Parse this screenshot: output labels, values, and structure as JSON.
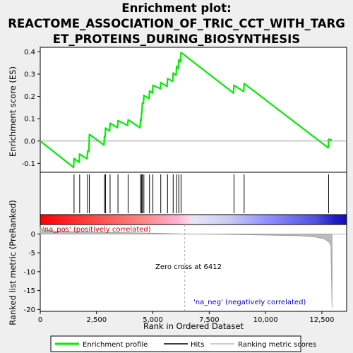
{
  "chart_data": {
    "type": "line",
    "title_line1": "Enrichment plot:",
    "title_line2": "REACTOME_ASSOCIATION_OF_TRIC_CCT_WITH_TARG",
    "title_line3": "ET_PROTEINS_DURING_BIOSYNTHESIS",
    "xlabel": "Rank in Ordered Dataset",
    "ylabel_top": "Enrichment score (ES)",
    "ylabel_bottom": "Ranked list metric (PreRanked)",
    "xlim": [
      0,
      13600
    ],
    "es_ylim": [
      -0.14,
      0.42
    ],
    "metric_ylim": [
      -20.5,
      2.5
    ],
    "x_ticks": [
      0,
      2500,
      5000,
      7500,
      10000,
      12500
    ],
    "x_tick_labels": [
      "0",
      "2,500",
      "5,000",
      "7,500",
      "10,000",
      "12,500"
    ],
    "es_ticks": [
      -0.1,
      0.0,
      0.1,
      0.2,
      0.3,
      0.4
    ],
    "es_tick_labels": [
      "-0.1",
      "0.0",
      "0.1",
      "0.2",
      "0.3",
      "0.4"
    ],
    "metric_ticks": [
      0,
      -5,
      -10,
      -15,
      -20
    ],
    "metric_tick_labels": [
      "0",
      "-5",
      "-10",
      "-15",
      "-20"
    ],
    "hits": [
      1500,
      1750,
      2100,
      2180,
      2850,
      2900,
      3100,
      3450,
      3900,
      4450,
      4500,
      4530,
      4600,
      4850,
      5000,
      5350,
      5650,
      5900,
      6050,
      6150,
      6250,
      8600,
      9050,
      12800
    ],
    "es_curve": [
      [
        0,
        0.0
      ],
      [
        1480,
        -0.118
      ],
      [
        1500,
        -0.078
      ],
      [
        1730,
        -0.095
      ],
      [
        1750,
        -0.058
      ],
      [
        2080,
        -0.08
      ],
      [
        2100,
        -0.045
      ],
      [
        2160,
        -0.048
      ],
      [
        2180,
        0.03
      ],
      [
        2830,
        -0.018
      ],
      [
        2850,
        0.02
      ],
      [
        2880,
        0.018
      ],
      [
        2900,
        0.058
      ],
      [
        3080,
        0.045
      ],
      [
        3100,
        0.08
      ],
      [
        3430,
        0.06
      ],
      [
        3450,
        0.092
      ],
      [
        3880,
        0.07
      ],
      [
        3900,
        0.095
      ],
      [
        4430,
        0.06
      ],
      [
        4450,
        0.095
      ],
      [
        4480,
        0.092
      ],
      [
        4500,
        0.13
      ],
      [
        4510,
        0.128
      ],
      [
        4530,
        0.17
      ],
      [
        4580,
        0.168
      ],
      [
        4600,
        0.205
      ],
      [
        4830,
        0.19
      ],
      [
        4850,
        0.225
      ],
      [
        4980,
        0.215
      ],
      [
        5000,
        0.25
      ],
      [
        5330,
        0.235
      ],
      [
        5350,
        0.262
      ],
      [
        5630,
        0.245
      ],
      [
        5650,
        0.28
      ],
      [
        5880,
        0.268
      ],
      [
        5900,
        0.305
      ],
      [
        6030,
        0.295
      ],
      [
        6050,
        0.335
      ],
      [
        6130,
        0.325
      ],
      [
        6150,
        0.365
      ],
      [
        6230,
        0.355
      ],
      [
        6250,
        0.397
      ],
      [
        8580,
        0.215
      ],
      [
        8600,
        0.25
      ],
      [
        9030,
        0.222
      ],
      [
        9050,
        0.258
      ],
      [
        12780,
        -0.03
      ],
      [
        12800,
        0.008
      ],
      [
        12950,
        0.005
      ]
    ],
    "zero_cross": 6412,
    "zero_cross_label": "Zero cross at 6412",
    "na_pos_label": "'na_pos' (positively correlated)",
    "na_neg_label": "'na_neg' (negatively correlated)",
    "metric_curve": [
      [
        0,
        1.8
      ],
      [
        200,
        1.0
      ],
      [
        600,
        0.8
      ],
      [
        1500,
        0.6
      ],
      [
        3000,
        0.4
      ],
      [
        5000,
        0.2
      ],
      [
        6412,
        0.0
      ],
      [
        8000,
        -0.1
      ],
      [
        10000,
        -0.3
      ],
      [
        11500,
        -0.5
      ],
      [
        12200,
        -0.8
      ],
      [
        12600,
        -1.3
      ],
      [
        12800,
        -2.0
      ],
      [
        12900,
        -3.0
      ],
      [
        12950,
        -19.5
      ]
    ],
    "colors": {
      "es_line": "#00ee00",
      "hit_line": "#000000",
      "metric_fill": "#bbbbbb",
      "na_pos_text": "#cc0000",
      "na_neg_text": "#0000cc",
      "zero_line": "#aaaaaa"
    },
    "legend": [
      {
        "label": "Enrichment profile",
        "color": "#00ee00"
      },
      {
        "label": "Hits",
        "color": "#000000"
      },
      {
        "label": "Ranking metric scores",
        "color": "#bbbbbb"
      }
    ]
  }
}
